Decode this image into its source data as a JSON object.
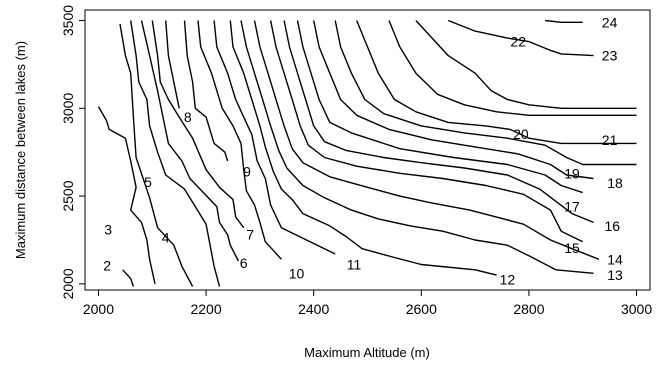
{
  "chart_data": {
    "type": "contour",
    "title": "",
    "xlabel": "Maximum Altitude (m)",
    "ylabel": "Maximum distance between lakes (m)",
    "xlim": [
      1975,
      3025
    ],
    "ylim": [
      1965,
      3560
    ],
    "x_ticks": [
      2000,
      2200,
      2400,
      2600,
      2800,
      3000
    ],
    "y_ticks": [
      2000,
      2500,
      3000,
      3500
    ],
    "x_tick_labels": [
      "2000",
      "2200",
      "2400",
      "2600",
      "2800",
      "3000"
    ],
    "y_tick_labels": [
      "2000",
      "2500",
      "3000",
      "3500"
    ],
    "grid": false,
    "contours": [
      {
        "level": "2",
        "label_at": [
          2016,
          2105
        ],
        "points": [
          [
            2045,
            2080
          ],
          [
            2060,
            2030
          ],
          [
            2065,
            1985
          ]
        ]
      },
      {
        "level": "3",
        "label_at": [
          2018,
          2310
        ],
        "points": [
          [
            2000,
            3010
          ],
          [
            2015,
            2930
          ],
          [
            2020,
            2880
          ],
          [
            2050,
            2830
          ],
          [
            2060,
            2700
          ],
          [
            2070,
            2550
          ],
          [
            2060,
            2420
          ],
          [
            2080,
            2350
          ],
          [
            2090,
            2250
          ],
          [
            2095,
            2140
          ],
          [
            2105,
            2000
          ]
        ]
      },
      {
        "level": "4",
        "label_at": [
          2125,
          2265
        ],
        "points": [
          [
            2040,
            3480
          ],
          [
            2050,
            3300
          ],
          [
            2060,
            3200
          ],
          [
            2065,
            2950
          ],
          [
            2070,
            2720
          ],
          [
            2095,
            2490
          ],
          [
            2110,
            2320
          ],
          [
            2140,
            2220
          ],
          [
            2155,
            2100
          ],
          [
            2175,
            1985
          ]
        ]
      },
      {
        "level": "5",
        "label_at": [
          2092,
          2580
        ],
        "points": [
          [
            2060,
            3500
          ],
          [
            2070,
            3300
          ],
          [
            2075,
            3150
          ],
          [
            2090,
            3050
          ],
          [
            2095,
            2900
          ],
          [
            2110,
            2750
          ],
          [
            2125,
            2620
          ],
          [
            2160,
            2540
          ],
          [
            2180,
            2440
          ],
          [
            2200,
            2340
          ],
          [
            2215,
            2100
          ],
          [
            2225,
            1985
          ]
        ]
      },
      {
        "level": "6",
        "label_at": [
          2270,
          2120
        ],
        "points": [
          [
            2080,
            3500
          ],
          [
            2095,
            3300
          ],
          [
            2110,
            3100
          ],
          [
            2120,
            2950
          ],
          [
            2130,
            2800
          ],
          [
            2155,
            2700
          ],
          [
            2170,
            2600
          ],
          [
            2195,
            2520
          ],
          [
            2220,
            2440
          ],
          [
            2225,
            2350
          ],
          [
            2240,
            2280
          ],
          [
            2245,
            2220
          ],
          [
            2260,
            2130
          ]
        ]
      },
      {
        "level": "7",
        "label_at": [
          2282,
          2280
        ],
        "points": [
          [
            2100,
            3500
          ],
          [
            2110,
            3300
          ],
          [
            2115,
            3150
          ],
          [
            2130,
            3050
          ],
          [
            2150,
            2950
          ],
          [
            2175,
            2830
          ],
          [
            2200,
            2650
          ],
          [
            2225,
            2550
          ],
          [
            2250,
            2480
          ],
          [
            2255,
            2380
          ],
          [
            2270,
            2320
          ]
        ]
      },
      {
        "level": "8",
        "label_at": [
          2166,
          2950
        ],
        "points": [
          [
            2125,
            3500
          ],
          [
            2130,
            3300
          ],
          [
            2140,
            3150
          ],
          [
            2150,
            3000
          ]
        ]
      },
      {
        "level": "9",
        "label_at": [
          2276,
          2640
        ],
        "points": [
          [
            2160,
            3500
          ],
          [
            2165,
            3300
          ],
          [
            2175,
            3150
          ],
          [
            2180,
            3000
          ],
          [
            2200,
            2950
          ],
          [
            2215,
            2800
          ],
          [
            2235,
            2750
          ],
          [
            2240,
            2700
          ]
        ]
      },
      {
        "level": "10",
        "label_at": [
          2368,
          2060
        ],
        "points": [
          [
            2185,
            3500
          ],
          [
            2190,
            3350
          ],
          [
            2210,
            3200
          ],
          [
            2230,
            3000
          ],
          [
            2250,
            2900
          ],
          [
            2265,
            2800
          ],
          [
            2270,
            2650
          ],
          [
            2275,
            2530
          ],
          [
            2290,
            2450
          ],
          [
            2300,
            2350
          ],
          [
            2310,
            2240
          ],
          [
            2340,
            2140
          ]
        ]
      },
      {
        "level": "11",
        "label_at": [
          2475,
          2110
        ],
        "points": [
          [
            2215,
            3500
          ],
          [
            2220,
            3350
          ],
          [
            2240,
            3200
          ],
          [
            2255,
            3050
          ],
          [
            2270,
            2950
          ],
          [
            2285,
            2850
          ],
          [
            2295,
            2700
          ],
          [
            2310,
            2600
          ],
          [
            2320,
            2450
          ],
          [
            2340,
            2320
          ],
          [
            2400,
            2230
          ],
          [
            2440,
            2170
          ]
        ]
      },
      {
        "level": "12",
        "label_at": [
          2760,
          2025
        ],
        "points": [
          [
            2245,
            3500
          ],
          [
            2250,
            3350
          ],
          [
            2270,
            3200
          ],
          [
            2285,
            3050
          ],
          [
            2300,
            2900
          ],
          [
            2310,
            2780
          ],
          [
            2325,
            2640
          ],
          [
            2340,
            2540
          ],
          [
            2360,
            2480
          ],
          [
            2380,
            2400
          ],
          [
            2430,
            2330
          ],
          [
            2460,
            2270
          ],
          [
            2490,
            2200
          ],
          [
            2550,
            2150
          ],
          [
            2600,
            2110
          ],
          [
            2700,
            2080
          ],
          [
            2740,
            2050
          ]
        ]
      },
      {
        "level": "13",
        "label_at": [
          2960,
          2050
        ],
        "points": [
          [
            2265,
            3500
          ],
          [
            2275,
            3350
          ],
          [
            2290,
            3200
          ],
          [
            2305,
            3050
          ],
          [
            2320,
            2900
          ],
          [
            2335,
            2760
          ],
          [
            2350,
            2660
          ],
          [
            2380,
            2560
          ],
          [
            2420,
            2490
          ],
          [
            2470,
            2420
          ],
          [
            2520,
            2370
          ],
          [
            2580,
            2330
          ],
          [
            2640,
            2300
          ],
          [
            2700,
            2250
          ],
          [
            2760,
            2220
          ],
          [
            2800,
            2160
          ],
          [
            2850,
            2080
          ],
          [
            2920,
            2060
          ]
        ]
      },
      {
        "level": "14",
        "label_at": [
          2960,
          2140
        ],
        "points": [
          [
            2290,
            3500
          ],
          [
            2300,
            3350
          ],
          [
            2315,
            3200
          ],
          [
            2330,
            3050
          ],
          [
            2345,
            2900
          ],
          [
            2360,
            2770
          ],
          [
            2380,
            2690
          ],
          [
            2430,
            2610
          ],
          [
            2500,
            2550
          ],
          [
            2560,
            2500
          ],
          [
            2620,
            2460
          ],
          [
            2690,
            2420
          ],
          [
            2740,
            2380
          ],
          [
            2790,
            2340
          ],
          [
            2840,
            2250
          ],
          [
            2880,
            2200
          ],
          [
            2930,
            2140
          ]
        ]
      },
      {
        "level": "15",
        "label_at": [
          2880,
          2205
        ],
        "points": [
          [
            2320,
            3500
          ],
          [
            2330,
            3350
          ],
          [
            2345,
            3200
          ],
          [
            2360,
            3050
          ],
          [
            2375,
            2900
          ],
          [
            2390,
            2790
          ],
          [
            2420,
            2720
          ],
          [
            2480,
            2670
          ],
          [
            2560,
            2630
          ],
          [
            2640,
            2600
          ],
          [
            2720,
            2560
          ],
          [
            2790,
            2510
          ],
          [
            2840,
            2420
          ],
          [
            2860,
            2300
          ],
          [
            2900,
            2240
          ]
        ]
      },
      {
        "level": "16",
        "label_at": [
          2955,
          2330
        ],
        "points": [
          [
            2345,
            3500
          ],
          [
            2355,
            3350
          ],
          [
            2370,
            3200
          ],
          [
            2385,
            3050
          ],
          [
            2400,
            2900
          ],
          [
            2420,
            2810
          ],
          [
            2460,
            2760
          ],
          [
            2530,
            2720
          ],
          [
            2600,
            2690
          ],
          [
            2680,
            2660
          ],
          [
            2760,
            2620
          ],
          [
            2820,
            2540
          ],
          [
            2880,
            2400
          ],
          [
            2920,
            2350
          ]
        ]
      },
      {
        "level": "17",
        "label_at": [
          2880,
          2440
        ],
        "points": [
          [
            2370,
            3500
          ],
          [
            2380,
            3350
          ],
          [
            2395,
            3200
          ],
          [
            2410,
            3050
          ],
          [
            2430,
            2920
          ],
          [
            2470,
            2860
          ],
          [
            2560,
            2770
          ],
          [
            2660,
            2720
          ],
          [
            2760,
            2680
          ],
          [
            2830,
            2620
          ],
          [
            2860,
            2560
          ],
          [
            2900,
            2520
          ]
        ]
      },
      {
        "level": "18",
        "label_at": [
          2960,
          2575
        ],
        "points": [
          [
            2400,
            3500
          ],
          [
            2410,
            3350
          ],
          [
            2430,
            3200
          ],
          [
            2450,
            3050
          ],
          [
            2480,
            2960
          ],
          [
            2540,
            2880
          ],
          [
            2620,
            2820
          ],
          [
            2700,
            2780
          ],
          [
            2780,
            2740
          ],
          [
            2840,
            2680
          ],
          [
            2870,
            2620
          ],
          [
            2920,
            2600
          ]
        ]
      },
      {
        "level": "19",
        "label_at": [
          2880,
          2630
        ],
        "points": [
          [
            2440,
            3500
          ],
          [
            2450,
            3350
          ],
          [
            2470,
            3200
          ],
          [
            2495,
            3050
          ],
          [
            2530,
            2970
          ],
          [
            2600,
            2900
          ],
          [
            2680,
            2860
          ],
          [
            2760,
            2830
          ],
          [
            2830,
            2790
          ],
          [
            2870,
            2720
          ],
          [
            2900,
            2680
          ],
          [
            3000,
            2680
          ]
        ]
      },
      {
        "level": "20",
        "label_at": [
          2785,
          2855
        ],
        "points": [
          [
            2480,
            3500
          ],
          [
            2500,
            3350
          ],
          [
            2520,
            3200
          ],
          [
            2550,
            3050
          ],
          [
            2590,
            2980
          ],
          [
            2650,
            2920
          ],
          [
            2720,
            2900
          ],
          [
            2765,
            2880
          ],
          [
            2800,
            2830
          ],
          [
            2860,
            2800
          ],
          [
            3000,
            2800
          ]
        ]
      },
      {
        "level": "21",
        "label_at": [
          2950,
          2820
        ],
        "points": [
          [
            2540,
            3500
          ],
          [
            2560,
            3350
          ],
          [
            2590,
            3200
          ],
          [
            2630,
            3080
          ],
          [
            2680,
            3020
          ],
          [
            2740,
            2980
          ],
          [
            2800,
            2960
          ],
          [
            2850,
            2960
          ],
          [
            3000,
            2960
          ]
        ]
      },
      {
        "level": "22",
        "label_at": [
          2780,
          3380
        ],
        "points": [
          [
            2590,
            3500
          ],
          [
            2620,
            3400
          ],
          [
            2650,
            3300
          ],
          [
            2700,
            3200
          ],
          [
            2730,
            3100
          ],
          [
            2760,
            3050
          ],
          [
            2800,
            3020
          ],
          [
            2860,
            3000
          ],
          [
            3000,
            3000
          ]
        ]
      },
      {
        "level": "23",
        "label_at": [
          2950,
          3300
        ],
        "points": [
          [
            2650,
            3500
          ],
          [
            2700,
            3440
          ],
          [
            2760,
            3400
          ],
          [
            2800,
            3380
          ],
          [
            2840,
            3330
          ],
          [
            2860,
            3310
          ],
          [
            2920,
            3300
          ]
        ]
      },
      {
        "level": "24",
        "label_at": [
          2950,
          3490
        ],
        "points": [
          [
            2830,
            3500
          ],
          [
            2860,
            3490
          ],
          [
            2900,
            3490
          ]
        ]
      }
    ]
  }
}
